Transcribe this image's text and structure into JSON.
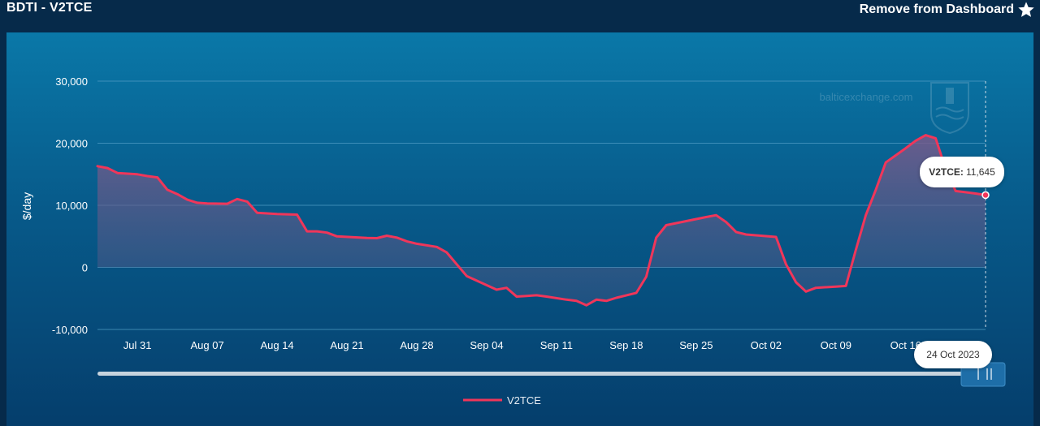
{
  "header": {
    "title": "BDTI - V2TCE",
    "action_label": "Remove from Dashboard",
    "action_icon": "star-icon"
  },
  "watermark": "balticexchange.com",
  "tooltip": {
    "series_label": "V2TCE:",
    "value_text": "11,645",
    "date_text": "24 Oct 2023"
  },
  "colors": {
    "line": "#f0365a",
    "grid": "#4f9cc4",
    "text": "#ffffff"
  },
  "chart_data": {
    "type": "area",
    "ylabel": "$/day",
    "ylim": [
      -10000,
      30000
    ],
    "yticks": [
      {
        "v": 30000,
        "label": "30,000"
      },
      {
        "v": 20000,
        "label": "20,000"
      },
      {
        "v": 10000,
        "label": "10,000"
      },
      {
        "v": 0,
        "label": "0"
      },
      {
        "v": -10000,
        "label": "-10,000"
      }
    ],
    "xlim": [
      "2023-07-27",
      "2023-10-24"
    ],
    "xticks": [
      {
        "date": "2023-07-31",
        "label": "Jul 31"
      },
      {
        "date": "2023-08-07",
        "label": "Aug 07"
      },
      {
        "date": "2023-08-14",
        "label": "Aug 14"
      },
      {
        "date": "2023-08-21",
        "label": "Aug 21"
      },
      {
        "date": "2023-08-28",
        "label": "Aug 28"
      },
      {
        "date": "2023-09-04",
        "label": "Sep 04"
      },
      {
        "date": "2023-09-11",
        "label": "Sep 11"
      },
      {
        "date": "2023-09-18",
        "label": "Sep 18"
      },
      {
        "date": "2023-09-25",
        "label": "Sep 25"
      },
      {
        "date": "2023-10-02",
        "label": "Oct 02"
      },
      {
        "date": "2023-10-09",
        "label": "Oct 09"
      },
      {
        "date": "2023-10-16",
        "label": "Oct 16"
      }
    ],
    "grid": true,
    "legend": "bottom-center",
    "series": [
      {
        "name": "V2TCE",
        "color": "#f0365a",
        "points": [
          [
            "2023-07-27",
            16300
          ],
          [
            "2023-07-28",
            16000
          ],
          [
            "2023-07-29",
            15200
          ],
          [
            "2023-07-31",
            15000
          ],
          [
            "2023-08-01",
            14700
          ],
          [
            "2023-08-02",
            14500
          ],
          [
            "2023-08-03",
            12500
          ],
          [
            "2023-08-04",
            11800
          ],
          [
            "2023-08-05",
            10900
          ],
          [
            "2023-08-06",
            10400
          ],
          [
            "2023-08-07",
            10300
          ],
          [
            "2023-08-09",
            10250
          ],
          [
            "2023-08-10",
            11000
          ],
          [
            "2023-08-11",
            10600
          ],
          [
            "2023-08-12",
            8800
          ],
          [
            "2023-08-14",
            8600
          ],
          [
            "2023-08-16",
            8500
          ],
          [
            "2023-08-17",
            5800
          ],
          [
            "2023-08-18",
            5800
          ],
          [
            "2023-08-19",
            5600
          ],
          [
            "2023-08-20",
            5000
          ],
          [
            "2023-08-23",
            4750
          ],
          [
            "2023-08-24",
            4700
          ],
          [
            "2023-08-25",
            5100
          ],
          [
            "2023-08-26",
            4800
          ],
          [
            "2023-08-27",
            4200
          ],
          [
            "2023-08-28",
            3800
          ],
          [
            "2023-08-30",
            3300
          ],
          [
            "2023-08-31",
            2400
          ],
          [
            "2023-09-02",
            -1400
          ],
          [
            "2023-09-05",
            -3600
          ],
          [
            "2023-09-06",
            -3300
          ],
          [
            "2023-09-07",
            -4700
          ],
          [
            "2023-09-08",
            -4600
          ],
          [
            "2023-09-09",
            -4500
          ],
          [
            "2023-09-10",
            -4700
          ],
          [
            "2023-09-12",
            -5200
          ],
          [
            "2023-09-13",
            -5400
          ],
          [
            "2023-09-14",
            -6100
          ],
          [
            "2023-09-15",
            -5200
          ],
          [
            "2023-09-16",
            -5400
          ],
          [
            "2023-09-17",
            -4900
          ],
          [
            "2023-09-19",
            -4100
          ],
          [
            "2023-09-20",
            -1500
          ],
          [
            "2023-09-21",
            4800
          ],
          [
            "2023-09-22",
            6800
          ],
          [
            "2023-09-26",
            8100
          ],
          [
            "2023-09-27",
            8400
          ],
          [
            "2023-09-28",
            7300
          ],
          [
            "2023-09-29",
            5700
          ],
          [
            "2023-09-30",
            5300
          ],
          [
            "2023-10-03",
            4900
          ],
          [
            "2023-10-04",
            500
          ],
          [
            "2023-10-05",
            -2400
          ],
          [
            "2023-10-06",
            -3900
          ],
          [
            "2023-10-07",
            -3300
          ],
          [
            "2023-10-09",
            -3100
          ],
          [
            "2023-10-10",
            -3000
          ],
          [
            "2023-10-11",
            2800
          ],
          [
            "2023-10-12",
            8400
          ],
          [
            "2023-10-13",
            12500
          ],
          [
            "2023-10-14",
            16900
          ],
          [
            "2023-10-16",
            19200
          ],
          [
            "2023-10-17",
            20400
          ],
          [
            "2023-10-18",
            21300
          ],
          [
            "2023-10-19",
            20800
          ],
          [
            "2023-10-20",
            15800
          ],
          [
            "2023-10-21",
            12300
          ],
          [
            "2023-10-22",
            12100
          ],
          [
            "2023-10-23",
            11900
          ],
          [
            "2023-10-24",
            11645
          ]
        ]
      }
    ]
  }
}
